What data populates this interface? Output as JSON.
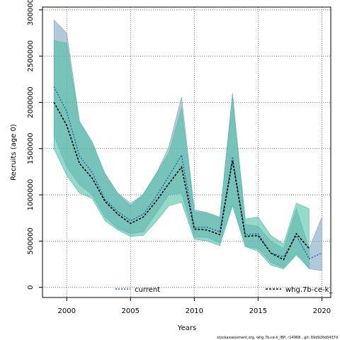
{
  "chart_data": {
    "type": "line",
    "xlabel": "Years",
    "ylabel": "Recruits (age 0)",
    "xlim": [
      1998.1,
      2020.7
    ],
    "ylim": [
      -110000,
      3030000
    ],
    "x_ticks": [
      "2000",
      "2005",
      "2010",
      "2015",
      "2020"
    ],
    "y_ticks": [
      "0",
      "500000",
      "1000000",
      "1500000",
      "2000000",
      "2500000",
      "3000000"
    ],
    "grid": true,
    "legend_placement": "bottom",
    "footer": "stockassessment.org, whg.7b-ce-k_IBP, r14968 , git: 69d926d0437d",
    "series": [
      {
        "name": "current",
        "color": "#1f5fa0",
        "band_color": "#7fa5c0",
        "x": [
          1999,
          2000,
          2001,
          2002,
          2003,
          2004,
          2005,
          2006,
          2007,
          2008,
          2009,
          2010,
          2011,
          2012,
          2013,
          2014,
          2015,
          2016,
          2017,
          2018,
          2019,
          2020
        ],
        "values": [
          2170000,
          1900000,
          1420000,
          1240000,
          950000,
          820000,
          720000,
          790000,
          980000,
          1200000,
          1430000,
          650000,
          650000,
          600000,
          1410000,
          570000,
          580000,
          370000,
          330000,
          560000,
          310000,
          370000
        ],
        "lower": [
          1640000,
          1300000,
          1110000,
          1000000,
          760000,
          640000,
          580000,
          600000,
          800000,
          1000000,
          1020000,
          540000,
          540000,
          480000,
          900000,
          440000,
          420000,
          270000,
          210000,
          360000,
          200000,
          180000
        ],
        "upper": [
          2890000,
          2750000,
          1800000,
          1570000,
          1230000,
          1020000,
          910000,
          1000000,
          1220000,
          1520000,
          2060000,
          840000,
          810000,
          760000,
          2100000,
          680000,
          660000,
          500000,
          420000,
          850000,
          420000,
          760000
        ]
      },
      {
        "name": "whg.7b-ce-k_",
        "color": "#000000",
        "band_color": "#4fbfa5",
        "x": [
          1999,
          2000,
          2001,
          2002,
          2003,
          2004,
          2005,
          2006,
          2007,
          2008,
          2009,
          2010,
          2011,
          2012,
          2013,
          2014,
          2015,
          2016,
          2017,
          2018,
          2019
        ],
        "values": [
          2000000,
          1750000,
          1340000,
          1180000,
          930000,
          790000,
          690000,
          760000,
          930000,
          1120000,
          1300000,
          630000,
          620000,
          570000,
          1370000,
          550000,
          560000,
          370000,
          300000,
          580000,
          420000
        ],
        "lower": [
          1500000,
          1210000,
          1020000,
          960000,
          720000,
          620000,
          550000,
          560000,
          710000,
          880000,
          920000,
          520000,
          500000,
          450000,
          880000,
          440000,
          390000,
          240000,
          200000,
          350000,
          210000
        ],
        "upper": [
          2670000,
          2640000,
          1780000,
          1570000,
          1230000,
          1010000,
          880000,
          1010000,
          1230000,
          1450000,
          1940000,
          820000,
          800000,
          750000,
          2060000,
          740000,
          760000,
          560000,
          470000,
          910000,
          850000
        ]
      }
    ]
  }
}
